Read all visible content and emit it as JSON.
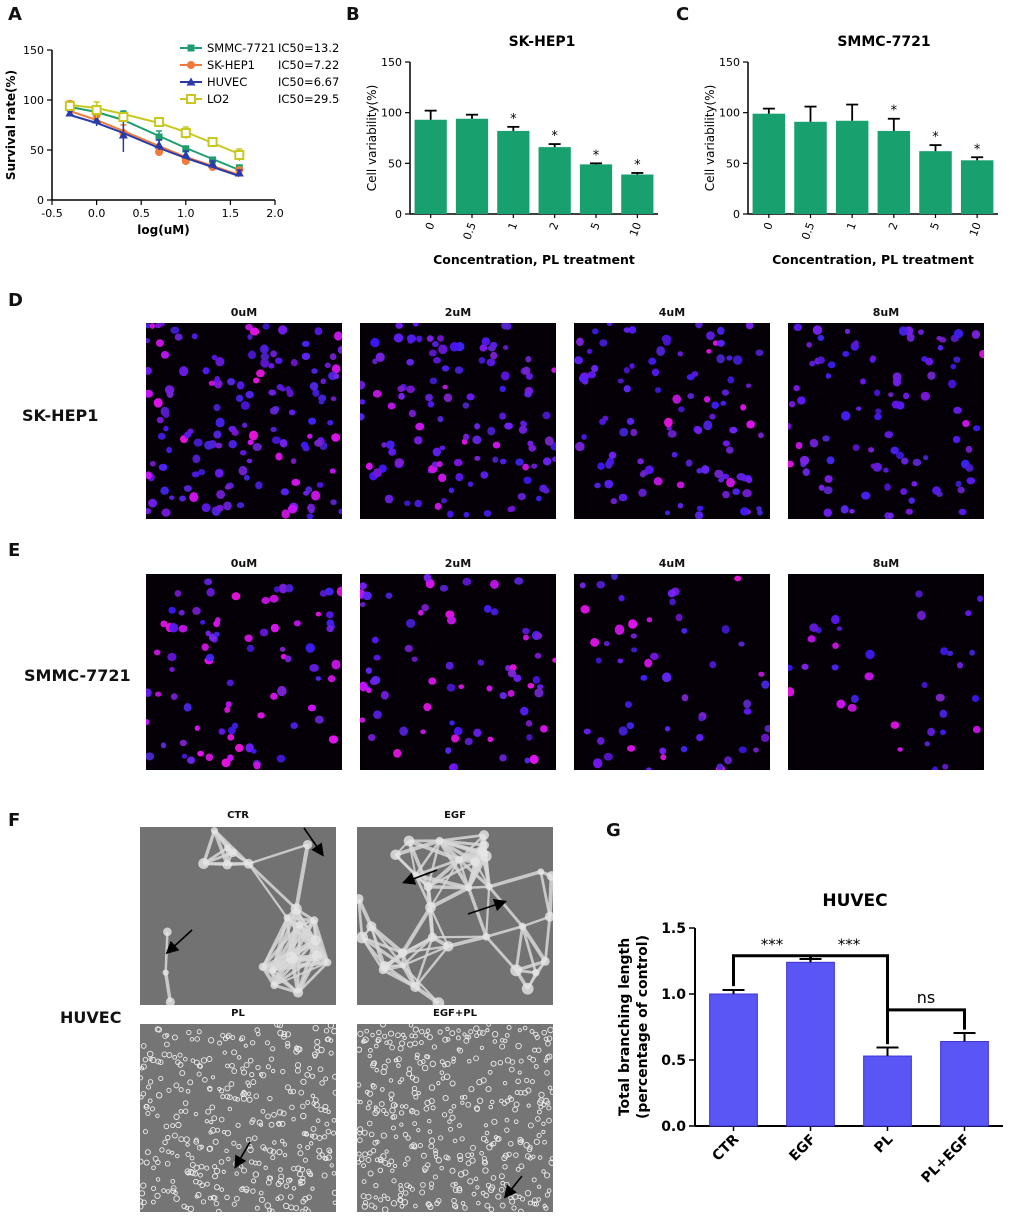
{
  "panels": {
    "A": "A",
    "B": "B",
    "C": "C",
    "D": "D",
    "E": "E",
    "F": "F",
    "G": "G"
  },
  "chart_data": [
    {
      "id": "A",
      "type": "line",
      "title": "",
      "xlabel": "log(uM)",
      "ylabel": "Survival rate(%)",
      "xlim": [
        -0.5,
        2.0
      ],
      "ylim": [
        0,
        150
      ],
      "xticks": [
        "-0.5",
        "0.0",
        "0.5",
        "1.0",
        "1.5",
        "2.0"
      ],
      "yticks": [
        "0",
        "50",
        "100",
        "150"
      ],
      "x": [
        -0.3,
        0.0,
        0.3,
        0.7,
        1.0,
        1.3,
        1.6
      ],
      "series": [
        {
          "name": "SMMC-7721",
          "ic50": "IC50=13.23",
          "color": "#1e9e6e",
          "marker": "square",
          "values": [
            95,
            90,
            85,
            63,
            51,
            40,
            32
          ],
          "errors": [
            3,
            3,
            4,
            6,
            3,
            2,
            3
          ],
          "fit": [
            93,
            88,
            80,
            64,
            52,
            41,
            30
          ]
        },
        {
          "name": "SK-HEP1",
          "ic50": "IC50=7.22",
          "color": "#f07a3a",
          "marker": "circle",
          "values": [
            96,
            85,
            67,
            48,
            39,
            33,
            30
          ],
          "errors": [
            3,
            4,
            8,
            4,
            2,
            2,
            2
          ],
          "fit": [
            89,
            80,
            69,
            54,
            43,
            34,
            25
          ]
        },
        {
          "name": "HUVEC",
          "ic50": "IC50=6.67",
          "color": "#2a3aa8",
          "marker": "triangle",
          "values": [
            87,
            80,
            65,
            55,
            45,
            36,
            27
          ],
          "errors": [
            2,
            6,
            17,
            5,
            4,
            3,
            3
          ],
          "fit": [
            85,
            77,
            67,
            52,
            42,
            33,
            24
          ]
        },
        {
          "name": "LO2",
          "ic50": "IC50=29.54",
          "color": "#c8c820",
          "marker": "open-square",
          "values": [
            94,
            90,
            83,
            78,
            67,
            58,
            45
          ],
          "errors": [
            3,
            8,
            3,
            3,
            6,
            3,
            6
          ],
          "fit": [
            95,
            92,
            86,
            77,
            68,
            57,
            46
          ]
        }
      ]
    },
    {
      "id": "B",
      "type": "bar",
      "title": "SK-HEP1",
      "xlabel": "Concentration, PL treatment",
      "ylabel": "Cell variability(%)",
      "ylim": [
        0,
        150
      ],
      "yticks": [
        "0",
        "50",
        "100",
        "150"
      ],
      "categories": [
        "0",
        "0.5",
        "1",
        "2",
        "5",
        "10"
      ],
      "values": [
        93,
        94,
        82,
        66,
        49,
        39
      ],
      "errors": [
        9,
        4,
        4,
        3,
        1,
        1.5
      ],
      "significance": [
        "",
        "",
        "*",
        "*",
        "*",
        "*"
      ],
      "color": "#18a06e"
    },
    {
      "id": "C",
      "type": "bar",
      "title": "SMMC-7721",
      "xlabel": "Concentration, PL treatment",
      "ylabel": "Cell variability(%)",
      "ylim": [
        0,
        150
      ],
      "yticks": [
        "0",
        "50",
        "100",
        "150"
      ],
      "categories": [
        "0",
        "0.5",
        "1",
        "2",
        "5",
        "10"
      ],
      "values": [
        99,
        91,
        92,
        82,
        62,
        53
      ],
      "errors": [
        5,
        15,
        16,
        12,
        6,
        3
      ],
      "significance": [
        "",
        "",
        "",
        "*",
        "*",
        "*"
      ],
      "color": "#18a06e"
    },
    {
      "id": "G",
      "type": "bar",
      "title": "HUVEC",
      "xlabel": "",
      "ylabel": "Total branching length\n(percentage of control)",
      "ylabel_line1": "Total branching length",
      "ylabel_line2": "(percentage of control)",
      "ylim": [
        0,
        1.5
      ],
      "yticks": [
        "0.0",
        "0.5",
        "1.0",
        "1.5"
      ],
      "categories": [
        "CTR",
        "EGF",
        "PL",
        "PL+EGF"
      ],
      "values": [
        1.0,
        1.24,
        0.53,
        0.64
      ],
      "errors": [
        0.03,
        0.025,
        0.065,
        0.065
      ],
      "comparisons": [
        {
          "label": "***",
          "from": 0,
          "to": 1
        },
        {
          "label": "***",
          "from": 1,
          "to": 2
        },
        {
          "label": "ns",
          "from": 2,
          "to": 3
        }
      ],
      "color": "#5a55f5"
    }
  ],
  "panelD": {
    "row_label": "SK-HEP1",
    "columns": [
      "0uM",
      "2uM",
      "4uM",
      "8uM"
    ]
  },
  "panelE": {
    "row_label": "SMMC-7721",
    "columns": [
      "0uM",
      "2uM",
      "4uM",
      "8uM"
    ]
  },
  "panelF": {
    "row_label": "HUVEC",
    "titles": [
      "CTR",
      "EGF",
      "PL",
      "EGF+PL"
    ]
  }
}
